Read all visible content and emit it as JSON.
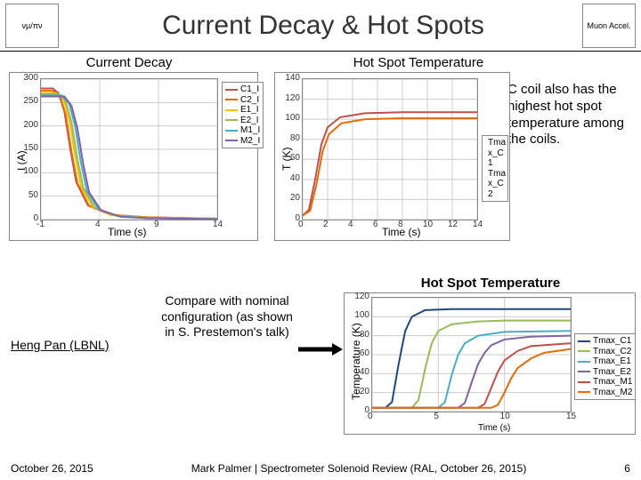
{
  "header": {
    "title": "Current Decay & Hot Spots",
    "logo_left": "νμ/πν",
    "logo_right": "Muon Accel."
  },
  "subtitles": {
    "left": "Current Decay",
    "right": "Hot Spot Temperature"
  },
  "annotation": "C coil also has the highest hot spot temperature among the coils.",
  "chart1": {
    "type": "line",
    "xlabel": "Time (s)",
    "ylabel": "I (A)",
    "xlim": [
      -1,
      14
    ],
    "ylim": [
      0,
      300
    ],
    "xticks": [
      -1,
      4,
      9,
      14
    ],
    "yticks": [
      0,
      50,
      100,
      150,
      200,
      250,
      300
    ],
    "grid_color": "#cccccc",
    "bg": "#ffffff",
    "series": [
      {
        "name": "C1_I",
        "color": "#c0504d",
        "pts": [
          [
            -1,
            280
          ],
          [
            0,
            280
          ],
          [
            0.5,
            270
          ],
          [
            1,
            230
          ],
          [
            1.5,
            150
          ],
          [
            2,
            80
          ],
          [
            3,
            30
          ],
          [
            5,
            10
          ],
          [
            8,
            5
          ],
          [
            14,
            2
          ]
        ]
      },
      {
        "name": "C2_I",
        "color": "#e46c0a",
        "pts": [
          [
            -1,
            275
          ],
          [
            0,
            275
          ],
          [
            0.6,
            265
          ],
          [
            1.1,
            225
          ],
          [
            1.6,
            145
          ],
          [
            2.1,
            78
          ],
          [
            3.1,
            29
          ],
          [
            5,
            10
          ],
          [
            8,
            5
          ],
          [
            14,
            2
          ]
        ]
      },
      {
        "name": "E1_I",
        "color": "#ffc000",
        "pts": [
          [
            -1,
            270
          ],
          [
            0.3,
            270
          ],
          [
            0.9,
            258
          ],
          [
            1.4,
            215
          ],
          [
            1.9,
            138
          ],
          [
            2.4,
            72
          ],
          [
            3.4,
            27
          ],
          [
            5.2,
            9
          ],
          [
            8,
            4
          ],
          [
            14,
            2
          ]
        ]
      },
      {
        "name": "E2_I",
        "color": "#9bbb59",
        "pts": [
          [
            -1,
            268
          ],
          [
            0.5,
            268
          ],
          [
            1.1,
            253
          ],
          [
            1.6,
            208
          ],
          [
            2.1,
            130
          ],
          [
            2.6,
            68
          ],
          [
            3.6,
            25
          ],
          [
            5.4,
            8
          ],
          [
            8,
            4
          ],
          [
            14,
            2
          ]
        ]
      },
      {
        "name": "M1_I",
        "color": "#4bacc6",
        "pts": [
          [
            -1,
            265
          ],
          [
            0.8,
            265
          ],
          [
            1.4,
            248
          ],
          [
            1.9,
            200
          ],
          [
            2.4,
            122
          ],
          [
            2.9,
            62
          ],
          [
            3.9,
            22
          ],
          [
            5.6,
            7
          ],
          [
            8,
            3
          ],
          [
            14,
            1
          ]
        ]
      },
      {
        "name": "M2_I",
        "color": "#8064a2",
        "pts": [
          [
            -1,
            263
          ],
          [
            1.0,
            263
          ],
          [
            1.6,
            243
          ],
          [
            2.1,
            195
          ],
          [
            2.6,
            118
          ],
          [
            3.1,
            58
          ],
          [
            4.1,
            20
          ],
          [
            5.8,
            6
          ],
          [
            8,
            3
          ],
          [
            14,
            1
          ]
        ]
      }
    ]
  },
  "chart2": {
    "type": "line",
    "xlabel": "Time (s)",
    "ylabel": "T (K)",
    "xlim": [
      0,
      14
    ],
    "ylim": [
      0,
      140
    ],
    "xticks": [
      0,
      2,
      4,
      6,
      8,
      10,
      12,
      14
    ],
    "yticks": [
      0,
      20,
      40,
      60,
      80,
      100,
      120,
      140
    ],
    "grid_color": "#cccccc",
    "bg": "#ffffff",
    "series": [
      {
        "name": "Tmax_C1",
        "color": "#c0504d",
        "pts": [
          [
            0,
            4
          ],
          [
            0.5,
            10
          ],
          [
            1,
            40
          ],
          [
            1.5,
            75
          ],
          [
            2,
            92
          ],
          [
            3,
            102
          ],
          [
            5,
            106
          ],
          [
            8,
            107
          ],
          [
            14,
            107
          ]
        ]
      },
      {
        "name": "Tmax_C2",
        "color": "#e46c0a",
        "pts": [
          [
            0,
            4
          ],
          [
            0.6,
            9
          ],
          [
            1.1,
            35
          ],
          [
            1.6,
            68
          ],
          [
            2.1,
            85
          ],
          [
            3.1,
            96
          ],
          [
            5,
            100
          ],
          [
            8,
            101
          ],
          [
            14,
            101
          ]
        ]
      }
    ],
    "legend_labels": [
      "Tma x_C 1",
      "Tma x_C 2"
    ]
  },
  "chart3": {
    "type": "line",
    "title": "Hot Spot Temperature",
    "xlabel": "Time (s)",
    "ylabel": "Temperature (K)",
    "xlim": [
      0,
      15
    ],
    "ylim": [
      0,
      120
    ],
    "xticks": [
      0,
      5,
      10,
      15
    ],
    "yticks": [
      0,
      20,
      40,
      60,
      80,
      100,
      120
    ],
    "grid_color": "#cccccc",
    "bg": "#ffffff",
    "series": [
      {
        "name": "Tmax_C1",
        "color": "#1f497d",
        "pts": [
          [
            0,
            4
          ],
          [
            1,
            4
          ],
          [
            1.5,
            10
          ],
          [
            2,
            50
          ],
          [
            2.5,
            85
          ],
          [
            3,
            100
          ],
          [
            4,
            107
          ],
          [
            6,
            108
          ],
          [
            10,
            108
          ],
          [
            15,
            108
          ]
        ]
      },
      {
        "name": "Tmax_C2",
        "color": "#9bbb59",
        "pts": [
          [
            0,
            4
          ],
          [
            3,
            4
          ],
          [
            3.5,
            12
          ],
          [
            4,
            45
          ],
          [
            4.5,
            72
          ],
          [
            5,
            85
          ],
          [
            6,
            92
          ],
          [
            8,
            95
          ],
          [
            10,
            96
          ],
          [
            15,
            96
          ]
        ]
      },
      {
        "name": "Tmax_E1",
        "color": "#4bacc6",
        "pts": [
          [
            0,
            4
          ],
          [
            5,
            4
          ],
          [
            5.5,
            10
          ],
          [
            6,
            38
          ],
          [
            6.5,
            60
          ],
          [
            7,
            72
          ],
          [
            8,
            80
          ],
          [
            10,
            84
          ],
          [
            15,
            85
          ]
        ]
      },
      {
        "name": "Tmax_E2",
        "color": "#8064a2",
        "pts": [
          [
            0,
            4
          ],
          [
            6.5,
            4
          ],
          [
            7,
            9
          ],
          [
            7.5,
            30
          ],
          [
            8,
            50
          ],
          [
            8.5,
            62
          ],
          [
            9,
            70
          ],
          [
            10,
            76
          ],
          [
            12,
            79
          ],
          [
            15,
            80
          ]
        ]
      },
      {
        "name": "Tmax_M1",
        "color": "#c0504d",
        "pts": [
          [
            0,
            4
          ],
          [
            8,
            4
          ],
          [
            8.5,
            8
          ],
          [
            9,
            25
          ],
          [
            9.5,
            42
          ],
          [
            10,
            54
          ],
          [
            11,
            64
          ],
          [
            12,
            69
          ],
          [
            15,
            72
          ]
        ]
      },
      {
        "name": "Tmax_M2",
        "color": "#e46c0a",
        "pts": [
          [
            0,
            4
          ],
          [
            9,
            4
          ],
          [
            9.5,
            7
          ],
          [
            10,
            20
          ],
          [
            10.5,
            35
          ],
          [
            11,
            46
          ],
          [
            12,
            56
          ],
          [
            13,
            62
          ],
          [
            15,
            66
          ]
        ]
      }
    ]
  },
  "center_text": "Compare with nominal configuration (as shown in S. Prestemon's talk)",
  "author": "Heng Pan (LBNL)",
  "footer": {
    "date": "October 26, 2015",
    "credit": "Mark Palmer | Spectrometer Solenoid Review (RAL, October 26, 2015)",
    "page": "6"
  }
}
